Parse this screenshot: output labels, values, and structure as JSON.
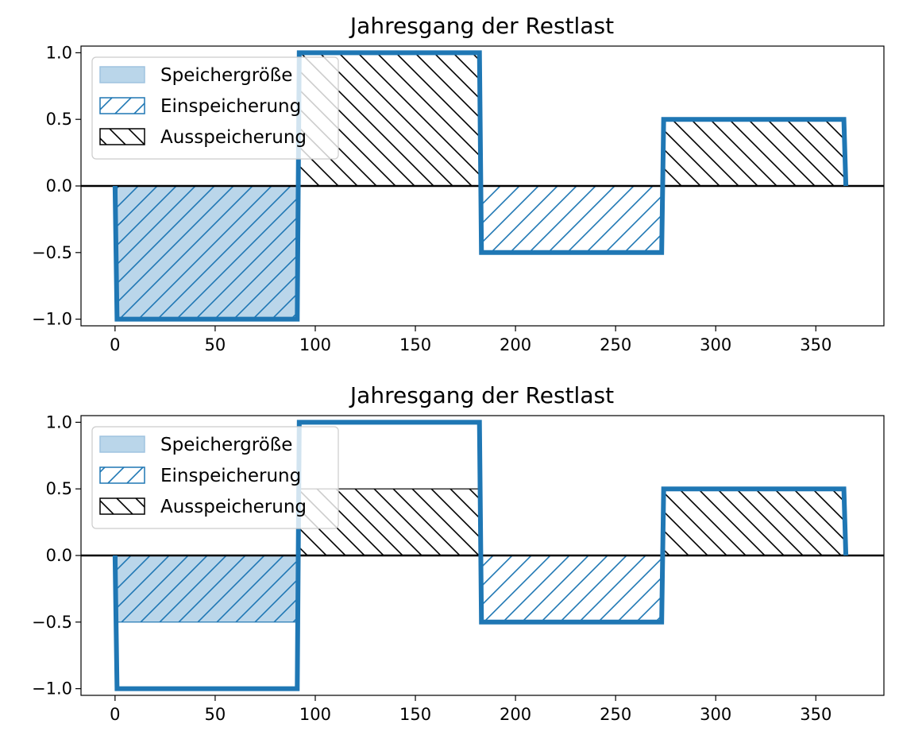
{
  "colors": {
    "line": "#1f77b4",
    "fill": "#bad6ea",
    "hatch_charge": "#1f77b4",
    "hatch_discharge": "#000000",
    "axis": "#000000",
    "zero_line": "#000000"
  },
  "chart_data": [
    {
      "type": "area",
      "title": "Jahresgang der Restlast",
      "xlabel": "",
      "ylabel": "",
      "xlim": [
        -17,
        384
      ],
      "ylim": [
        -1.05,
        1.05
      ],
      "xticks": [
        0,
        50,
        100,
        150,
        200,
        250,
        300,
        350
      ],
      "xtick_labels": [
        "0",
        "50",
        "100",
        "150",
        "200",
        "250",
        "300",
        "350"
      ],
      "yticks": [
        1.0,
        0.5,
        0.0,
        -0.5,
        -1.0
      ],
      "ytick_labels": [
        "1.0",
        "0.5",
        "0.0",
        "−0.5",
        "−1.0"
      ],
      "grid": false,
      "legend_position": "upper-left",
      "residual_load": {
        "x": [
          0,
          1,
          91,
          92,
          182,
          183,
          273,
          274,
          364,
          365
        ],
        "y": [
          0,
          -1,
          -1,
          1,
          1,
          -0.5,
          -0.5,
          0.5,
          0.5,
          0
        ]
      },
      "storage_size": [
        {
          "x0": 1,
          "x1": 91,
          "y0": -1,
          "y1": 0
        }
      ],
      "charging": [
        {
          "x0": 1,
          "x1": 91,
          "y0": -1,
          "y1": 0
        },
        {
          "x0": 183,
          "x1": 273,
          "y0": -0.5,
          "y1": 0
        }
      ],
      "discharging": [
        {
          "x0": 92,
          "x1": 182,
          "y0": 0,
          "y1": 1
        },
        {
          "x0": 274,
          "x1": 364,
          "y0": 0,
          "y1": 0.5
        }
      ],
      "legend": [
        {
          "label": "Speichergröße",
          "style": "fill"
        },
        {
          "label": "Einspeicherung",
          "style": "hatch-charge"
        },
        {
          "label": "Ausspeicherung",
          "style": "hatch-discharge"
        }
      ]
    },
    {
      "type": "area",
      "title": "Jahresgang der Restlast",
      "xlabel": "",
      "ylabel": "",
      "xlim": [
        -17,
        384
      ],
      "ylim": [
        -1.05,
        1.05
      ],
      "xticks": [
        0,
        50,
        100,
        150,
        200,
        250,
        300,
        350
      ],
      "xtick_labels": [
        "0",
        "50",
        "100",
        "150",
        "200",
        "250",
        "300",
        "350"
      ],
      "yticks": [
        1.0,
        0.5,
        0.0,
        -0.5,
        -1.0
      ],
      "ytick_labels": [
        "1.0",
        "0.5",
        "0.0",
        "−0.5",
        "−1.0"
      ],
      "grid": false,
      "legend_position": "upper-left",
      "residual_load": {
        "x": [
          0,
          1,
          91,
          92,
          182,
          183,
          273,
          274,
          364,
          365
        ],
        "y": [
          0,
          -1,
          -1,
          1,
          1,
          -0.5,
          -0.5,
          0.5,
          0.5,
          0
        ]
      },
      "storage_size": [
        {
          "x0": 1,
          "x1": 91,
          "y0": -0.5,
          "y1": 0
        }
      ],
      "charging": [
        {
          "x0": 1,
          "x1": 91,
          "y0": -0.5,
          "y1": 0
        },
        {
          "x0": 183,
          "x1": 273,
          "y0": -0.5,
          "y1": 0
        }
      ],
      "discharging": [
        {
          "x0": 92,
          "x1": 182,
          "y0": 0,
          "y1": 0.5
        },
        {
          "x0": 274,
          "x1": 364,
          "y0": 0,
          "y1": 0.5
        }
      ],
      "legend": [
        {
          "label": "Speichergröße",
          "style": "fill"
        },
        {
          "label": "Einspeicherung",
          "style": "hatch-charge"
        },
        {
          "label": "Ausspeicherung",
          "style": "hatch-discharge"
        }
      ]
    }
  ]
}
